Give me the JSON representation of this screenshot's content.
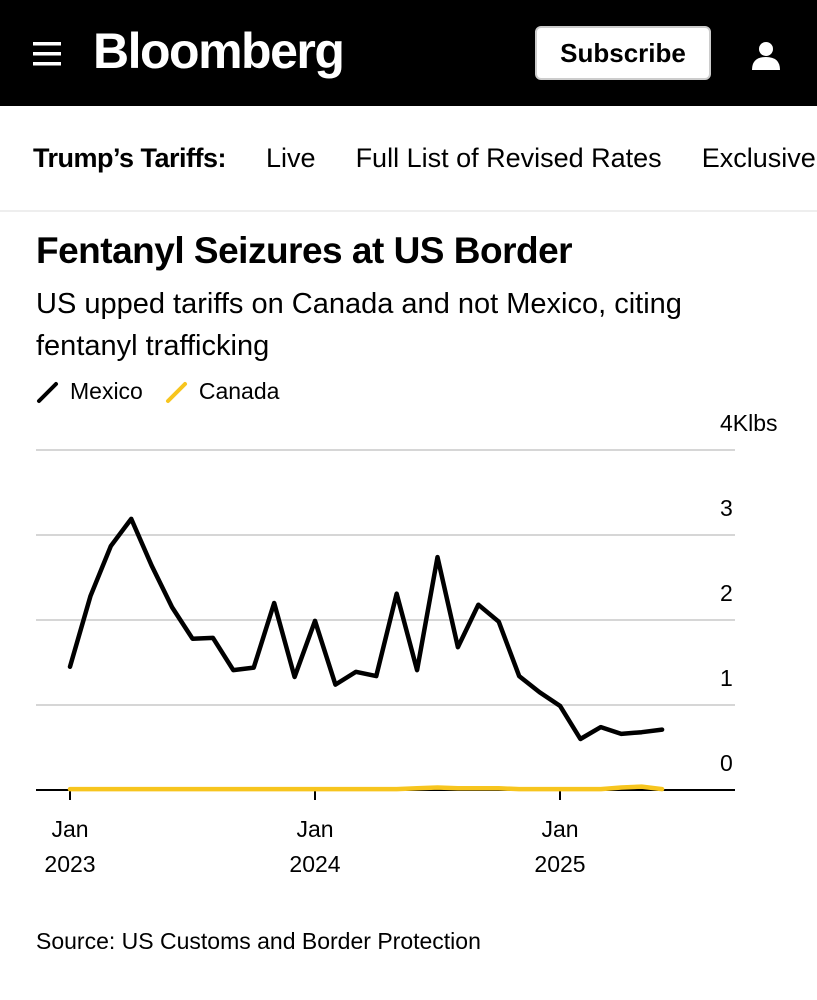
{
  "header": {
    "logo": "Bloomberg",
    "subscribe": "Subscribe"
  },
  "nav": {
    "label": "Trump’s Tariffs:",
    "items": [
      "Live",
      "Full List of Revised Rates",
      "Exclusive"
    ]
  },
  "chart_data": {
    "type": "line",
    "title": "Fentanyl Seizures at US Border",
    "subtitle": "US upped tariffs on Canada and not Mexico, citing fentanyl trafficking",
    "x": [
      "2023-01",
      "2023-02",
      "2023-03",
      "2023-04",
      "2023-05",
      "2023-06",
      "2023-07",
      "2023-08",
      "2023-09",
      "2023-10",
      "2023-11",
      "2023-12",
      "2024-01",
      "2024-02",
      "2024-03",
      "2024-04",
      "2024-05",
      "2024-06",
      "2024-07",
      "2024-08",
      "2024-09",
      "2024-10",
      "2024-11",
      "2024-12",
      "2025-01",
      "2025-02",
      "2025-03",
      "2025-04",
      "2025-05",
      "2025-06"
    ],
    "series": [
      {
        "name": "Mexico",
        "color": "#000000",
        "values": [
          1.45,
          2.28,
          2.87,
          3.19,
          2.64,
          2.15,
          1.78,
          1.79,
          1.41,
          1.44,
          2.2,
          1.33,
          1.99,
          1.24,
          1.39,
          1.34,
          2.31,
          1.41,
          2.74,
          1.68,
          2.18,
          1.98,
          1.34,
          1.15,
          0.99,
          0.6,
          0.74,
          0.66,
          0.68,
          0.71
        ]
      },
      {
        "name": "Canada",
        "color": "#f7c51e",
        "values": [
          0.01,
          0.01,
          0.01,
          0.01,
          0.01,
          0.01,
          0.01,
          0.01,
          0.01,
          0.01,
          0.01,
          0.01,
          0.01,
          0.01,
          0.01,
          0.01,
          0.01,
          0.02,
          0.03,
          0.02,
          0.02,
          0.02,
          0.01,
          0.01,
          0.01,
          0.01,
          0.01,
          0.03,
          0.04,
          0.01
        ]
      }
    ],
    "ylim": [
      0,
      4
    ],
    "yticks": [
      0,
      1,
      2,
      3,
      {
        "value": 4,
        "label": "4Klbs"
      }
    ],
    "xticks": [
      {
        "value": "2023-01",
        "label": [
          "Jan",
          "2023"
        ]
      },
      {
        "value": "2024-01",
        "label": [
          "Jan",
          "2024"
        ]
      },
      {
        "value": "2025-01",
        "label": [
          "Jan",
          "2025"
        ]
      }
    ],
    "grid": true,
    "source": "Source: US Customs and Border Protection"
  }
}
